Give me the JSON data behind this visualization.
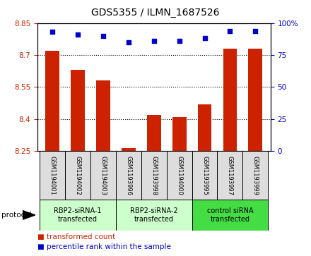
{
  "title": "GDS5355 / ILMN_1687526",
  "samples": [
    "GSM1194001",
    "GSM1194002",
    "GSM1194003",
    "GSM1193996",
    "GSM1193998",
    "GSM1194000",
    "GSM1193995",
    "GSM1193997",
    "GSM1193999"
  ],
  "bar_values": [
    8.72,
    8.63,
    8.58,
    8.265,
    8.42,
    8.41,
    8.47,
    8.73,
    8.73
  ],
  "percentile_values": [
    93,
    91,
    90,
    85,
    86,
    86,
    88,
    94,
    94
  ],
  "groups": [
    {
      "label": "RBP2-siRNA-1\ntransfected",
      "start": 0,
      "end": 3,
      "color": "#ccffcc"
    },
    {
      "label": "RBP2-siRNA-2\ntransfected",
      "start": 3,
      "end": 6,
      "color": "#ccffcc"
    },
    {
      "label": "control siRNA\ntransfected",
      "start": 6,
      "end": 9,
      "color": "#44dd44"
    }
  ],
  "ylim_left": [
    8.25,
    8.85
  ],
  "ylim_right": [
    0,
    100
  ],
  "yticks_left": [
    8.25,
    8.4,
    8.55,
    8.7,
    8.85
  ],
  "yticks_right": [
    0,
    25,
    50,
    75,
    100
  ],
  "bar_color": "#cc2200",
  "dot_color": "#0000cc",
  "bar_width": 0.55,
  "bar_baseline": 8.25,
  "bg_color": "#ffffff",
  "sample_bg_color": "#dddddd",
  "legend_items": [
    {
      "color": "#cc2200",
      "label": "transformed count"
    },
    {
      "color": "#0000cc",
      "label": "percentile rank within the sample"
    }
  ]
}
